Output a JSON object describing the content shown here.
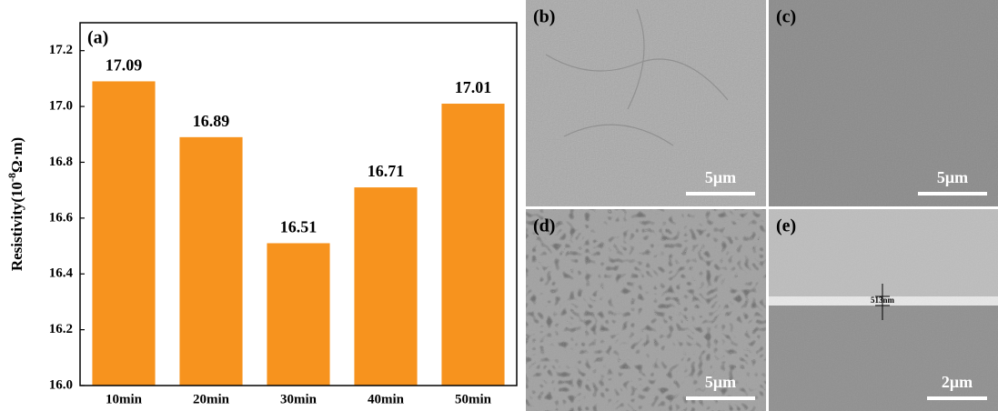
{
  "chart_data": {
    "type": "bar",
    "panel_label": "(a)",
    "y_label": {
      "text": "Resistivity(10",
      "superscript": "-8",
      "unit": "Ω·m)"
    },
    "categories": [
      "10min",
      "20min",
      "30min",
      "40min",
      "50min"
    ],
    "values": [
      17.09,
      16.89,
      16.51,
      16.71,
      17.01
    ],
    "color": "#f7931e",
    "ylim": [
      16.0,
      17.3
    ],
    "yticks": [
      {
        "value": 16,
        "label": "16.0"
      },
      16.2,
      16.4,
      16.6,
      16.8,
      {
        "value": 17,
        "label": "17.0"
      },
      17.2
    ],
    "grid": false
  },
  "panels": [
    {
      "label": "(b)",
      "scale_bar": "5μm"
    },
    {
      "label": "(c)",
      "scale_bar": "5μm"
    },
    {
      "label": "(d)",
      "scale_bar": "5μm"
    },
    {
      "label": "(e)",
      "scale_bar": "2μm",
      "annotation": "513nm"
    }
  ]
}
